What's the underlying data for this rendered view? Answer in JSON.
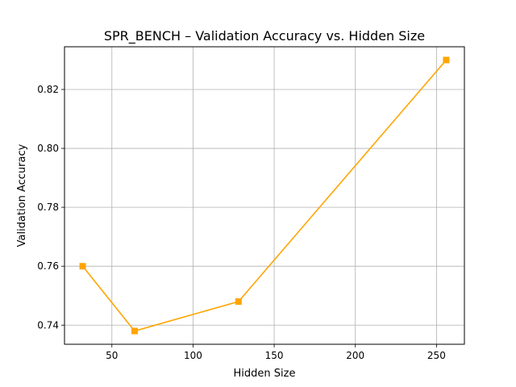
{
  "chart_data": {
    "type": "line",
    "title": "SPR_BENCH – Validation Accuracy vs. Hidden Size",
    "xlabel": "Hidden Size",
    "ylabel": "Validation Accuracy",
    "x": [
      32,
      64,
      128,
      256
    ],
    "series": [
      {
        "values": [
          0.76,
          0.738,
          0.748,
          0.83
        ],
        "color": "#ffa500",
        "marker": "square"
      }
    ],
    "xlim": [
      20.8,
      267.2
    ],
    "ylim": [
      0.7335,
      0.8345
    ],
    "xticks": [
      50,
      100,
      150,
      200,
      250
    ],
    "xtick_labels": [
      "50",
      "100",
      "150",
      "200",
      "250"
    ],
    "yticks": [
      0.74,
      0.76,
      0.78,
      0.8,
      0.82
    ],
    "ytick_labels": [
      "0.74",
      "0.76",
      "0.78",
      "0.80",
      "0.82"
    ],
    "grid": true,
    "legend": "none"
  }
}
